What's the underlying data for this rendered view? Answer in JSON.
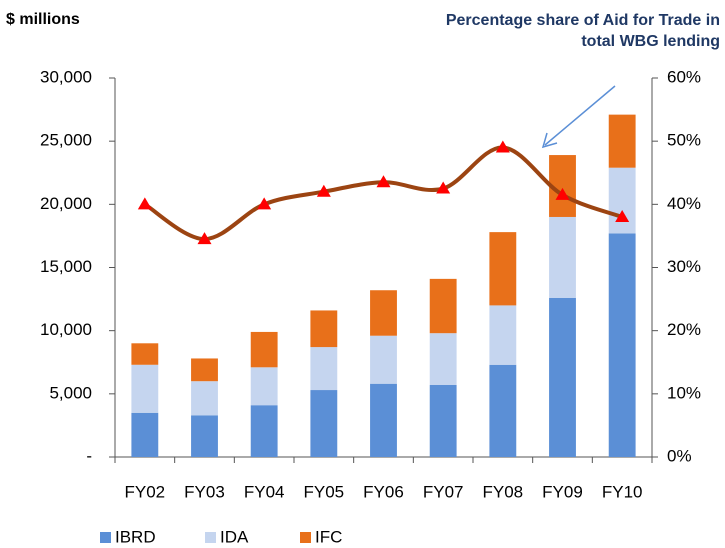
{
  "chart_data": {
    "type": "bar",
    "y_label": "$ millions",
    "annotation": [
      "Percentage share of Aid for Trade in",
      "total WBG lending"
    ],
    "categories": [
      "FY02",
      "FY03",
      "FY04",
      "FY05",
      "FY06",
      "FY07",
      "FY08",
      "FY09",
      "FY10"
    ],
    "series": [
      {
        "name": "IBRD",
        "color": "#5b8fd6",
        "values": [
          3500,
          3300,
          4100,
          5300,
          5800,
          5700,
          7300,
          12600,
          17700
        ]
      },
      {
        "name": "IDA",
        "color": "#c5d5ef",
        "values": [
          3800,
          2700,
          3000,
          3400,
          3800,
          4100,
          4700,
          6400,
          5200
        ]
      },
      {
        "name": "IFC",
        "color": "#e8701a",
        "values": [
          1700,
          1800,
          2800,
          2900,
          3600,
          4300,
          5800,
          4900,
          4200
        ]
      },
      {
        "type": "line",
        "axis": "y2",
        "color": "#9c4412",
        "marker_color": "#ff0000",
        "values": [
          40,
          34.5,
          40,
          42,
          43.5,
          42.5,
          49,
          41.5,
          38
        ]
      }
    ],
    "ylim": [
      0,
      30000
    ],
    "yticks": [
      {
        "value": 0,
        "label": "-"
      },
      {
        "value": 5000,
        "label": "5,000"
      },
      {
        "value": 10000,
        "label": "10,000"
      },
      {
        "value": 15000,
        "label": "15,000"
      },
      {
        "value": 20000,
        "label": "20,000"
      },
      {
        "value": 25000,
        "label": "25,000"
      },
      {
        "value": 30000,
        "label": "30,000"
      }
    ],
    "y2lim": [
      0,
      60
    ],
    "y2ticks": [
      {
        "value": 0,
        "label": "0%"
      },
      {
        "value": 10,
        "label": "10%"
      },
      {
        "value": 20,
        "label": "20%"
      },
      {
        "value": 30,
        "label": "30%"
      },
      {
        "value": 40,
        "label": "40%"
      },
      {
        "value": 50,
        "label": "50%"
      },
      {
        "value": 60,
        "label": "60%"
      }
    ],
    "legend": "bottom-left"
  }
}
